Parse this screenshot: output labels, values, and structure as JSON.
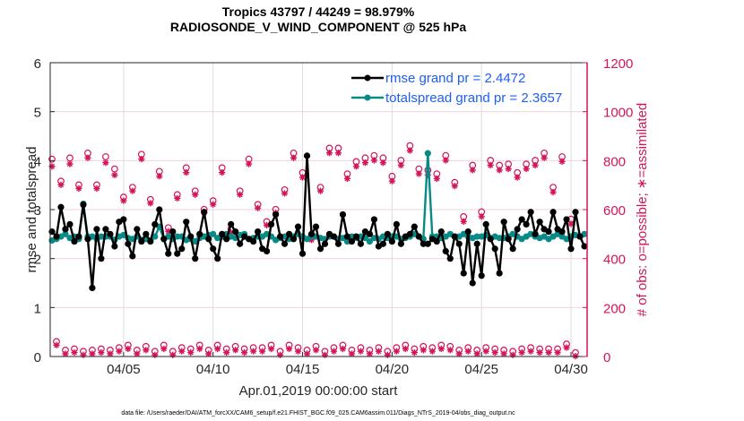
{
  "chart_data": {
    "type": "line",
    "title": [
      "Tropics 43797 / 44249 = 98.979%",
      "RADIOSONDE_V_WIND_COMPONENT @ 525 hPa"
    ],
    "xlabel": "Apr.01,2019 00:00:00 start",
    "ylabel_left": "rmse and totalspread",
    "ylabel_right": "# of obs: o=possible; ∗=assimilated",
    "ylim_left": [
      0,
      6
    ],
    "ylim_right": [
      0,
      1200
    ],
    "xlim_days": [
      0,
      30
    ],
    "yticks_left": [
      "0",
      "1",
      "2",
      "3",
      "4",
      "5",
      "6"
    ],
    "yticks_right": [
      "0",
      "200",
      "400",
      "600",
      "800",
      "1000",
      "1200"
    ],
    "xticks": [
      {
        "day": 4,
        "label": "04/05"
      },
      {
        "day": 9,
        "label": "04/10"
      },
      {
        "day": 14,
        "label": "04/15"
      },
      {
        "day": 19,
        "label": "04/20"
      },
      {
        "day": 24,
        "label": "04/25"
      },
      {
        "day": 29,
        "label": "04/30"
      }
    ],
    "grid": true,
    "legend_position": "top-right",
    "footer": "data file: /Users/raeder/DAI/ATM_forcXX/CAM6_setup/f.e21.FHIST_BGC.f09_025.CAM6assim.011/Diags_NTrS_2019-04/obs_diag_output.nc",
    "series": [
      {
        "name": "rmse grand pr = 2.4472",
        "color": "#000000",
        "values": [
          2.55,
          2.45,
          3.05,
          2.6,
          2.7,
          2.35,
          2.45,
          3.1,
          2.4,
          1.4,
          2.6,
          2.0,
          2.6,
          2.5,
          2.25,
          2.75,
          2.8,
          2.3,
          2.05,
          2.6,
          2.35,
          2.5,
          2.35,
          2.7,
          3.0,
          2.4,
          2.1,
          2.55,
          2.1,
          2.2,
          2.75,
          2.45,
          2.0,
          2.5,
          2.95,
          2.4,
          2.2,
          2.0,
          2.5,
          2.4,
          2.7,
          2.55,
          2.3,
          2.45,
          2.4,
          2.35,
          2.55,
          2.2,
          2.15,
          2.7,
          2.9,
          2.45,
          2.3,
          2.5,
          2.4,
          2.65,
          2.1,
          4.1,
          2.5,
          2.65,
          2.2,
          2.3,
          2.5,
          2.45,
          2.3,
          2.9,
          2.45,
          2.35,
          2.45,
          2.3,
          2.55,
          2.5,
          2.8,
          2.25,
          2.3,
          2.5,
          2.35,
          2.7,
          2.3,
          2.45,
          2.5,
          2.65,
          2.45,
          2.3,
          2.3,
          2.4,
          2.35,
          2.55,
          2.15,
          2.0,
          2.45,
          2.3,
          1.7,
          2.55,
          1.5,
          2.3,
          1.65,
          2.7,
          2.4,
          2.2,
          1.7,
          2.75,
          2.4,
          2.2,
          2.6,
          2.8,
          2.7,
          2.95,
          2.5,
          2.75,
          2.6,
          2.55,
          2.95,
          2.6,
          2.55,
          2.8,
          2.2,
          2.95,
          2.45,
          2.25
        ]
      },
      {
        "name": "totalspread grand pr = 2.3657",
        "color": "#088a87",
        "values": [
          2.37,
          2.4,
          2.45,
          2.5,
          2.42,
          2.45,
          2.4,
          3.12,
          2.45,
          2.45,
          2.4,
          2.45,
          2.45,
          2.45,
          2.38,
          2.45,
          2.48,
          2.42,
          2.4,
          2.45,
          2.38,
          2.4,
          2.37,
          2.45,
          2.65,
          2.4,
          2.45,
          2.4,
          2.45,
          2.45,
          2.38,
          2.4,
          2.35,
          2.42,
          2.45,
          2.48,
          2.5,
          2.42,
          2.45,
          2.5,
          2.45,
          2.42,
          2.48,
          2.5,
          2.4,
          2.42,
          2.45,
          2.45,
          2.5,
          2.45,
          2.38,
          2.42,
          2.45,
          2.4,
          2.45,
          2.5,
          2.45,
          2.4,
          2.45,
          2.45,
          2.42,
          2.4,
          2.45,
          2.45,
          2.4,
          2.42,
          2.35,
          2.45,
          2.42,
          2.45,
          2.42,
          2.35,
          2.42,
          2.4,
          2.45,
          2.42,
          2.45,
          2.45,
          2.4,
          2.42,
          2.45,
          2.5,
          2.45,
          2.4,
          4.15,
          2.45,
          2.45,
          2.42,
          2.45,
          2.5,
          2.45,
          2.45,
          2.5,
          2.45,
          2.42,
          2.45,
          2.45,
          2.48,
          2.42,
          2.45,
          2.42,
          2.42,
          2.45,
          2.5,
          2.45,
          2.4,
          2.45,
          2.5,
          2.45,
          2.42,
          2.45,
          2.4,
          2.45,
          2.5,
          2.45,
          2.4,
          2.45,
          2.48,
          2.45,
          2.5
        ]
      },
      {
        "name": "obs possible",
        "color": "#d4145a",
        "marker": "o",
        "values": [
          795,
          50,
          705,
          15,
          800,
          20,
          690,
          10,
          820,
          15,
          690,
          20,
          805,
          15,
          755,
          25,
          640,
          35,
          680,
          15,
          815,
          30,
          630,
          10,
          745,
          35,
          515,
          10,
          650,
          25,
          760,
          20,
          665,
          35,
          590,
          15,
          625,
          35,
          760,
          20,
          510,
          30,
          665,
          20,
          795,
          25,
          610,
          25,
          540,
          35,
          590,
          10,
          670,
          35,
          820,
          25,
          740,
          15,
          480,
          30,
          680,
          10,
          840,
          25,
          840,
          35,
          735,
          15,
          785,
          25,
          800,
          15,
          810,
          25,
          800,
          10,
          725,
          25,
          790,
          35,
          850,
          20,
          755,
          30,
          750,
          25,
          735,
          35,
          810,
          30,
          700,
          15,
          560,
          25,
          770,
          15,
          580,
          25,
          790,
          20,
          770,
          15,
          775,
          10,
          740,
          20,
          775,
          25,
          790,
          20,
          820,
          20,
          680,
          20,
          805,
          40,
          550,
          5
        ]
      },
      {
        "name": "obs assimilated",
        "color": "#d4145a",
        "marker": "*",
        "values": [
          780,
          50,
          705,
          15,
          790,
          20,
          690,
          10,
          815,
          15,
          690,
          20,
          795,
          15,
          745,
          25,
          640,
          35,
          680,
          15,
          810,
          30,
          630,
          10,
          740,
          35,
          515,
          10,
          650,
          25,
          755,
          20,
          665,
          35,
          590,
          15,
          625,
          35,
          755,
          20,
          510,
          30,
          665,
          20,
          790,
          25,
          610,
          25,
          540,
          35,
          590,
          10,
          670,
          35,
          815,
          25,
          735,
          15,
          480,
          30,
          680,
          10,
          835,
          25,
          835,
          35,
          730,
          15,
          780,
          25,
          795,
          15,
          805,
          25,
          795,
          10,
          720,
          25,
          785,
          35,
          845,
          20,
          750,
          30,
          745,
          25,
          730,
          35,
          805,
          30,
          700,
          15,
          555,
          25,
          765,
          15,
          575,
          25,
          785,
          20,
          765,
          15,
          770,
          10,
          735,
          20,
          770,
          25,
          785,
          20,
          815,
          20,
          675,
          20,
          800,
          40,
          545,
          5
        ]
      }
    ]
  },
  "legend": [
    {
      "label": "rmse grand pr = 2.4472",
      "color": "#000000"
    },
    {
      "label": "totalspread grand pr = 2.3657",
      "color": "#088a87"
    }
  ]
}
